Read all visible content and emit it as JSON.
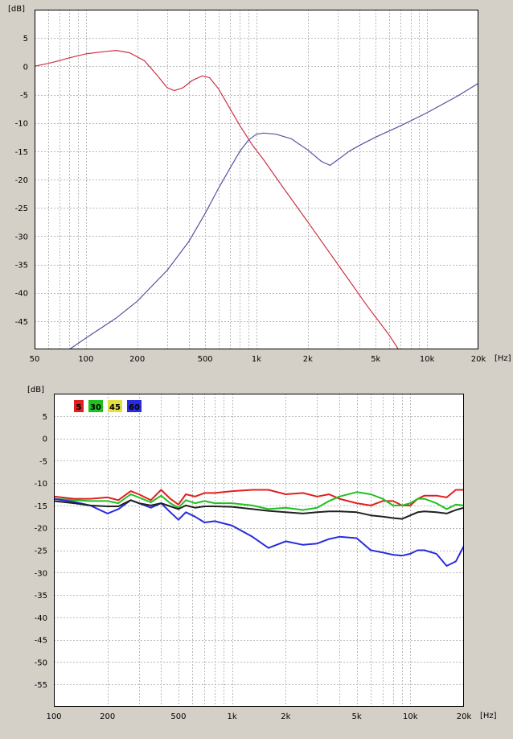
{
  "chart_data": [
    {
      "type": "line",
      "title": "",
      "xlabel": "",
      "ylabel": "",
      "ylabel_unit": "[dB]",
      "xlabel_unit": "[Hz]",
      "x_scale": "log",
      "xlim": [
        50,
        20000
      ],
      "ylim": [
        -50,
        10
      ],
      "grid": true,
      "x_major_ticks": [
        {
          "value": 50,
          "label": "50"
        },
        {
          "value": 100,
          "label": "100"
        },
        {
          "value": 200,
          "label": "200"
        },
        {
          "value": 500,
          "label": "500"
        },
        {
          "value": 1000,
          "label": "1k"
        },
        {
          "value": 2000,
          "label": "2k"
        },
        {
          "value": 5000,
          "label": "5k"
        },
        {
          "value": 10000,
          "label": "10k"
        },
        {
          "value": 20000,
          "label": "20k"
        }
      ],
      "y_ticks": [
        {
          "value": 5,
          "label": "5"
        },
        {
          "value": 0,
          "label": "0"
        },
        {
          "value": -5,
          "label": "-5"
        },
        {
          "value": -10,
          "label": "-10"
        },
        {
          "value": -15,
          "label": "-15"
        },
        {
          "value": -20,
          "label": "-20"
        },
        {
          "value": -25,
          "label": "-25"
        },
        {
          "value": -30,
          "label": "-30"
        },
        {
          "value": -35,
          "label": "-35"
        },
        {
          "value": -40,
          "label": "-40"
        },
        {
          "value": -45,
          "label": "-45"
        }
      ],
      "series": [
        {
          "color": "#cc3344",
          "x": [
            50,
            60,
            70,
            80,
            100,
            120,
            150,
            180,
            220,
            260,
            300,
            330,
            370,
            420,
            480,
            530,
            600,
            700,
            800,
            950,
            1100,
            1400,
            2000,
            3000,
            4500,
            6000,
            6800
          ],
          "y": [
            0,
            0.5,
            1,
            1.5,
            2.2,
            2.5,
            2.8,
            2.4,
            1.0,
            -1.5,
            -3.8,
            -4.3,
            -3.8,
            -2.5,
            -1.7,
            -2.0,
            -4.0,
            -7.5,
            -10.5,
            -14,
            -16.5,
            -21,
            -27.5,
            -35,
            -42.5,
            -47.5,
            -50
          ]
        },
        {
          "color": "#5555a0",
          "x": [
            80,
            100,
            150,
            200,
            300,
            400,
            500,
            600,
            700,
            800,
            900,
            1000,
            1100,
            1300,
            1600,
            2000,
            2400,
            2700,
            3000,
            3500,
            4000,
            5000,
            7000,
            10000,
            15000,
            20000
          ],
          "y": [
            -50,
            -48,
            -44.5,
            -41.5,
            -36,
            -31,
            -26,
            -21.5,
            -18,
            -15,
            -13,
            -12,
            -11.8,
            -12,
            -12.8,
            -14.8,
            -16.8,
            -17.5,
            -16.5,
            -15,
            -14,
            -12.5,
            -10.5,
            -8.2,
            -5.3,
            -3
          ]
        }
      ]
    },
    {
      "type": "line",
      "title": "",
      "xlabel": "",
      "ylabel": "",
      "ylabel_unit": "[dB]",
      "xlabel_unit": "[Hz]",
      "x_scale": "log",
      "xlim": [
        100,
        20000
      ],
      "ylim": [
        -60,
        10
      ],
      "grid": true,
      "legend_position": "top-left",
      "x_major_ticks": [
        {
          "value": 100,
          "label": "100"
        },
        {
          "value": 200,
          "label": "200"
        },
        {
          "value": 500,
          "label": "500"
        },
        {
          "value": 1000,
          "label": "1k"
        },
        {
          "value": 2000,
          "label": "2k"
        },
        {
          "value": 5000,
          "label": "5k"
        },
        {
          "value": 10000,
          "label": "10k"
        },
        {
          "value": 20000,
          "label": "20k"
        }
      ],
      "y_ticks": [
        {
          "value": 5,
          "label": "5"
        },
        {
          "value": 0,
          "label": "0"
        },
        {
          "value": -5,
          "label": "-5"
        },
        {
          "value": -10,
          "label": "-10"
        },
        {
          "value": -15,
          "label": "-15"
        },
        {
          "value": -20,
          "label": "-20"
        },
        {
          "value": -25,
          "label": "-25"
        },
        {
          "value": -30,
          "label": "-30"
        },
        {
          "value": -35,
          "label": "-35"
        },
        {
          "value": -40,
          "label": "-40"
        },
        {
          "value": -45,
          "label": "-45"
        },
        {
          "value": -50,
          "label": "-50"
        },
        {
          "value": -55,
          "label": "-55"
        }
      ],
      "series": [
        {
          "name": "5",
          "color": "#e02020",
          "x": [
            100,
            130,
            160,
            200,
            230,
            270,
            300,
            350,
            400,
            450,
            500,
            550,
            620,
            700,
            800,
            1000,
            1300,
            1600,
            2000,
            2500,
            3000,
            3500,
            4000,
            5000,
            6000,
            7000,
            8000,
            9000,
            10000,
            11000,
            12000,
            14000,
            16000,
            18000,
            20000
          ],
          "y": [
            -13,
            -13.5,
            -13.5,
            -13.2,
            -13.8,
            -11.8,
            -12.5,
            -13.8,
            -11.5,
            -13.5,
            -14.8,
            -12.5,
            -13,
            -12.2,
            -12.2,
            -11.8,
            -11.5,
            -11.5,
            -12.5,
            -12.2,
            -13,
            -12.5,
            -13.5,
            -14.5,
            -15,
            -14,
            -14,
            -15,
            -15,
            -13.5,
            -12.8,
            -12.8,
            -13.2,
            -11.5,
            -11.5
          ]
        },
        {
          "name": "30",
          "color": "#20c020",
          "x": [
            100,
            130,
            160,
            200,
            230,
            270,
            300,
            350,
            400,
            450,
            500,
            550,
            620,
            700,
            800,
            1000,
            1300,
            1600,
            2000,
            2500,
            3000,
            3500,
            4000,
            5000,
            6000,
            7000,
            8000,
            9000,
            10000,
            11000,
            12000,
            14000,
            16000,
            18000,
            20000
          ],
          "y": [
            -13.5,
            -13.8,
            -14,
            -14,
            -14.5,
            -12.5,
            -13.2,
            -14.3,
            -12.8,
            -14.5,
            -15.5,
            -13.8,
            -14.5,
            -14,
            -14.5,
            -14.5,
            -15,
            -15.8,
            -15.5,
            -16,
            -15.5,
            -14,
            -13,
            -12,
            -12.5,
            -13.5,
            -15,
            -15,
            -14.5,
            -13.5,
            -13.5,
            -14.5,
            -15.8,
            -14.8,
            -15
          ]
        },
        {
          "name": "45",
          "color": "#e0e040",
          "x": [],
          "y": []
        },
        {
          "name": "60",
          "color": "#2a2ae0",
          "x": [
            100,
            130,
            160,
            200,
            230,
            270,
            300,
            350,
            400,
            450,
            500,
            550,
            620,
            700,
            800,
            1000,
            1300,
            1600,
            2000,
            2500,
            3000,
            3500,
            4000,
            5000,
            6000,
            7000,
            8000,
            9000,
            10000,
            11000,
            12000,
            14000,
            16000,
            18000,
            20000
          ],
          "y": [
            -13.5,
            -14.2,
            -15,
            -16.8,
            -15.8,
            -13.8,
            -14.5,
            -15.5,
            -14.5,
            -16.5,
            -18.2,
            -16.5,
            -17.5,
            -18.8,
            -18.5,
            -19.5,
            -22,
            -24.5,
            -23,
            -23.8,
            -23.5,
            -22.5,
            -22,
            -22.3,
            -25,
            -25.5,
            -26,
            -26.2,
            -25.8,
            -25,
            -25,
            -25.8,
            -28.5,
            -27.5,
            -24
          ]
        },
        {
          "color": "#202020",
          "x": [
            100,
            130,
            160,
            200,
            230,
            270,
            300,
            350,
            400,
            450,
            500,
            550,
            620,
            700,
            800,
            1000,
            1300,
            1600,
            2000,
            2500,
            3000,
            3500,
            4000,
            5000,
            6000,
            7000,
            8000,
            9000,
            10000,
            11000,
            12000,
            14000,
            16000,
            18000,
            20000
          ],
          "y": [
            -14,
            -14.5,
            -15,
            -15.2,
            -15.2,
            -13.8,
            -14.5,
            -15,
            -14.5,
            -15.2,
            -15.8,
            -15,
            -15.5,
            -15.2,
            -15.2,
            -15.3,
            -15.8,
            -16.2,
            -16.5,
            -16.8,
            -16.5,
            -16.3,
            -16.3,
            -16.5,
            -17.2,
            -17.5,
            -17.8,
            -18,
            -17.2,
            -16.5,
            -16.3,
            -16.5,
            -16.8,
            -16,
            -15.5
          ]
        }
      ]
    }
  ]
}
